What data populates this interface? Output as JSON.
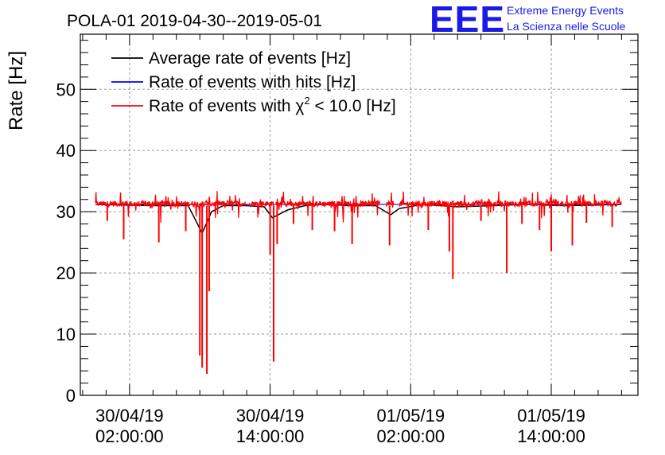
{
  "chart_data": {
    "type": "line",
    "title": "POLA-01 2019-04-30--2019-05-01",
    "ylabel": "Rate [Hz]",
    "xlabel": "",
    "ylim": [
      0,
      59
    ],
    "yticks": [
      0,
      10,
      20,
      30,
      40,
      50
    ],
    "xlim_hours": [
      -2.2,
      45.4
    ],
    "xticks": [
      {
        "label_date": "30/04/19",
        "label_time": "02:00:00",
        "hours": 2
      },
      {
        "label_date": "30/04/19",
        "label_time": "14:00:00",
        "hours": 14
      },
      {
        "label_date": "01/05/19",
        "label_time": "02:00:00",
        "hours": 26
      },
      {
        "label_date": "01/05/19",
        "label_time": "14:00:00",
        "hours": 38
      }
    ],
    "grid": true,
    "legend_position": "top-left",
    "series": [
      {
        "name": "Average rate of events [Hz]",
        "color": "#000000",
        "x_hours": [
          -0.9,
          4.0,
          7.0,
          8.2,
          9.0,
          10.0,
          12.0,
          13.5,
          14.2,
          15.5,
          17.0,
          18.5,
          21.0,
          23.0,
          24.3,
          25.0,
          27.0,
          30.0,
          33.0,
          36.0,
          39.0,
          42.0,
          44.0
        ],
        "values": [
          31.2,
          31.0,
          31.0,
          26.5,
          30.0,
          31.0,
          31.0,
          30.8,
          29.0,
          30.3,
          31.0,
          31.2,
          31.0,
          31.0,
          29.5,
          30.5,
          31.2,
          30.8,
          31.0,
          31.2,
          31.0,
          31.1,
          31.2
        ]
      },
      {
        "name": "Rate of events with hits [Hz]",
        "color": "#0000ff",
        "x_hours": [
          -0.9,
          44.0
        ],
        "values": [
          31.2,
          31.2
        ]
      },
      {
        "name": "Rate of events with χ² < 10.0 [Hz]",
        "color": "#ff0000",
        "noise_range": [
          29.8,
          32.8
        ],
        "segments_hours": [
          [
            -0.9,
            11.9
          ],
          [
            12.2,
            14.3
          ],
          [
            14.5,
            23.4
          ],
          [
            23.9,
            24.6
          ],
          [
            25.0,
            44.0
          ]
        ],
        "dips": [
          {
            "x_hours": 0.1,
            "value": 28.5
          },
          {
            "x_hours": 1.5,
            "value": 25.5
          },
          {
            "x_hours": 4.5,
            "value": 25.0
          },
          {
            "x_hours": 6.8,
            "value": 26.8
          },
          {
            "x_hours": 8.0,
            "value": 6.5
          },
          {
            "x_hours": 8.2,
            "value": 4.5
          },
          {
            "x_hours": 8.6,
            "value": 3.5
          },
          {
            "x_hours": 8.8,
            "value": 17.0
          },
          {
            "x_hours": 14.0,
            "value": 23.0
          },
          {
            "x_hours": 14.3,
            "value": 5.5
          },
          {
            "x_hours": 14.6,
            "value": 24.7
          },
          {
            "x_hours": 16.0,
            "value": 28.0
          },
          {
            "x_hours": 17.6,
            "value": 27.0
          },
          {
            "x_hours": 19.5,
            "value": 26.8
          },
          {
            "x_hours": 21.0,
            "value": 24.7
          },
          {
            "x_hours": 24.2,
            "value": 24.5
          },
          {
            "x_hours": 27.5,
            "value": 27.0
          },
          {
            "x_hours": 29.3,
            "value": 23.5
          },
          {
            "x_hours": 29.6,
            "value": 19.0
          },
          {
            "x_hours": 32.0,
            "value": 28.5
          },
          {
            "x_hours": 34.2,
            "value": 20.0
          },
          {
            "x_hours": 35.5,
            "value": 28.0
          },
          {
            "x_hours": 37.0,
            "value": 27.0
          },
          {
            "x_hours": 38.0,
            "value": 23.5
          },
          {
            "x_hours": 39.8,
            "value": 24.5
          },
          {
            "x_hours": 41.0,
            "value": 28.2
          },
          {
            "x_hours": 43.2,
            "value": 27.5
          }
        ]
      }
    ]
  },
  "legend": {
    "entries": [
      {
        "label": "Average rate of events [Hz]",
        "color": "#000000"
      },
      {
        "label": "Rate of events with hits [Hz]",
        "color": "#0000ff"
      },
      {
        "label_prefix": "Rate of events with χ",
        "label_sup": "2",
        "label_suffix": " < 10.0 [Hz]",
        "color": "#ff0000"
      }
    ]
  },
  "logo": {
    "mark": "EEE",
    "line1": "Extreme Energy Events",
    "line2": "La Scienza nelle Scuole",
    "color": "#1a1ae6"
  }
}
